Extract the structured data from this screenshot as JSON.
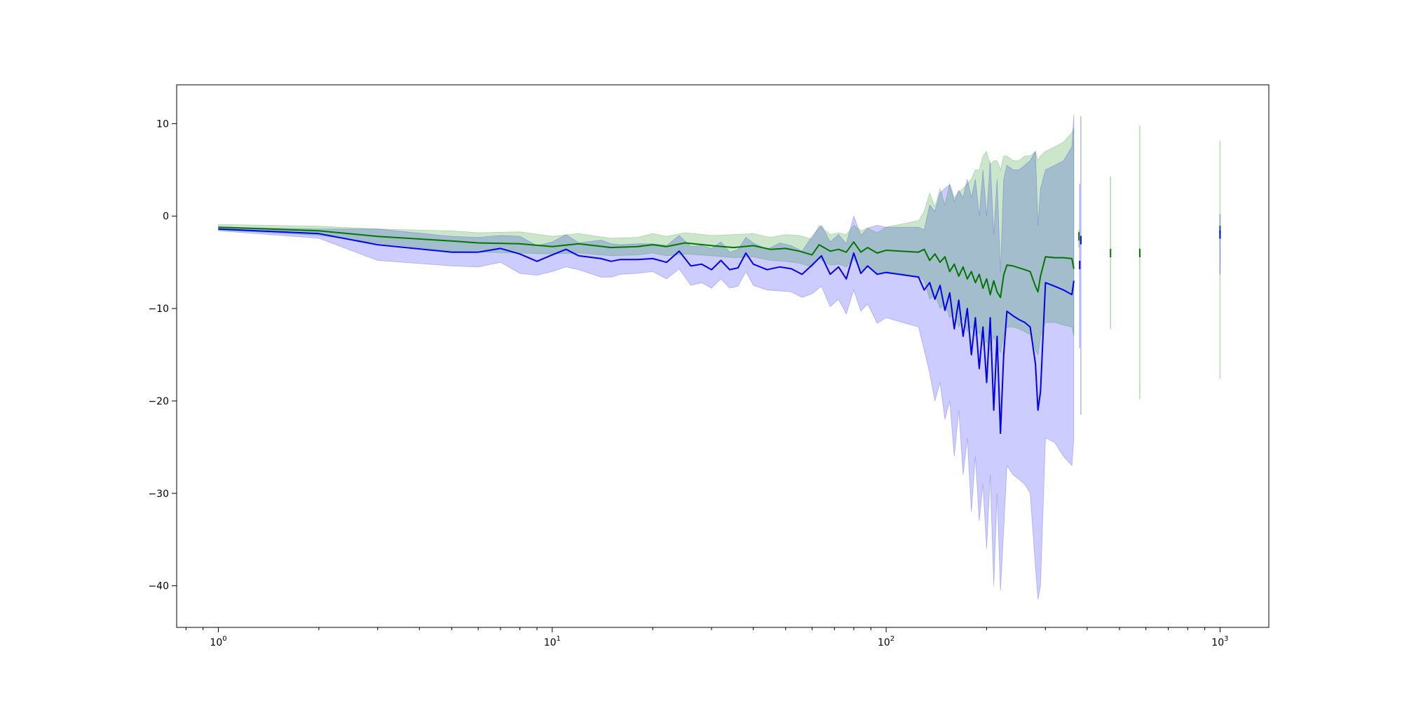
{
  "chart_data": {
    "type": "line",
    "title": "",
    "xlabel": "",
    "ylabel": "",
    "xscale": "log",
    "xlim": [
      0.75,
      1400
    ],
    "ylim": [
      -44.5,
      14.2
    ],
    "grid": false,
    "legend": "none",
    "x_major_ticks": [
      {
        "value": 1,
        "base": "10",
        "exp": "0"
      },
      {
        "value": 10,
        "base": "10",
        "exp": "1"
      },
      {
        "value": 100,
        "base": "10",
        "exp": "2"
      },
      {
        "value": 1000,
        "base": "10",
        "exp": "3"
      }
    ],
    "y_ticks": [
      {
        "value": 10,
        "label": "10"
      },
      {
        "value": 0,
        "label": "0"
      },
      {
        "value": -10,
        "label": "−10"
      },
      {
        "value": -20,
        "label": "−20"
      },
      {
        "value": -30,
        "label": "−30"
      },
      {
        "value": -40,
        "label": "−40"
      }
    ],
    "series": [
      {
        "color": "#0000ee",
        "band_color": "#0000ff",
        "band_opacity": 0.2,
        "points": [
          [
            1,
            -1.4,
            -1.6,
            -1.2
          ],
          [
            2,
            -1.9,
            -2.4,
            -1.4
          ],
          [
            3,
            -3.1,
            -4.8,
            -1.4
          ],
          [
            5,
            -3.9,
            -5.4,
            -2.2
          ],
          [
            6,
            -3.9,
            -5.5,
            -2.3
          ],
          [
            7,
            -3.5,
            -5.0,
            -2.1
          ],
          [
            8,
            -4.1,
            -6.2,
            -2.2
          ],
          [
            9,
            -4.9,
            -6.4,
            -3.2
          ],
          [
            10,
            -4.2,
            -6.0,
            -2.8
          ],
          [
            11,
            -3.6,
            -5.5,
            -2.0
          ],
          [
            12,
            -4.3,
            -5.8,
            -2.9
          ],
          [
            14,
            -4.6,
            -6.6,
            -2.6
          ],
          [
            15,
            -4.9,
            -6.6,
            -3.0
          ],
          [
            16,
            -4.7,
            -6.3,
            -3.1
          ],
          [
            18,
            -4.7,
            -6.2,
            -3.0
          ],
          [
            20,
            -4.6,
            -6.0,
            -3.0
          ],
          [
            22,
            -5.0,
            -6.8,
            -3.2
          ],
          [
            24,
            -3.8,
            -5.7,
            -2.1
          ],
          [
            26,
            -5.4,
            -7.5,
            -3.3
          ],
          [
            28,
            -5.2,
            -7.2,
            -3.2
          ],
          [
            30,
            -5.8,
            -7.8,
            -3.5
          ],
          [
            32,
            -4.8,
            -6.8,
            -2.8
          ],
          [
            34,
            -5.8,
            -7.8,
            -3.9
          ],
          [
            36,
            -5.6,
            -7.6,
            -3.6
          ],
          [
            38,
            -4.0,
            -6.0,
            -2.3
          ],
          [
            40,
            -5.2,
            -7.5,
            -2.9
          ],
          [
            44,
            -5.8,
            -8.0,
            -3.6
          ],
          [
            48,
            -5.5,
            -8.1,
            -2.9
          ],
          [
            52,
            -5.7,
            -8.2,
            -3.2
          ],
          [
            56,
            -6.3,
            -8.8,
            -3.8
          ],
          [
            60,
            -5.3,
            -8.4,
            -2.2
          ],
          [
            64,
            -4.3,
            -7.6,
            -1.0
          ],
          [
            68,
            -6.3,
            -9.8,
            -2.8
          ],
          [
            72,
            -5.5,
            -9.0,
            -2.0
          ],
          [
            76,
            -6.8,
            -10.6,
            -3.0
          ],
          [
            80,
            -4.0,
            -8.0,
            0.0
          ],
          [
            84,
            -6.2,
            -10.3,
            -2.1
          ],
          [
            88,
            -5.4,
            -9.5,
            -1.3
          ],
          [
            94,
            -6.3,
            -11.6,
            -1.0
          ],
          [
            100,
            -6.1,
            -11.0,
            -1.2
          ],
          [
            125,
            -6.6,
            -12.0,
            -1.2
          ],
          [
            130,
            -8.0,
            -14.5,
            -1.5
          ],
          [
            135,
            -7.2,
            -17.0,
            1.2
          ],
          [
            140,
            -9.0,
            -20.0,
            0.5
          ],
          [
            145,
            -7.5,
            -18.0,
            2.5
          ],
          [
            150,
            -10.2,
            -22.0,
            3.0
          ],
          [
            155,
            -8.3,
            -20.0,
            3.4
          ],
          [
            160,
            -12.2,
            -26.0,
            1.6
          ],
          [
            165,
            -9.1,
            -21.0,
            2.8
          ],
          [
            170,
            -13.0,
            -28.0,
            2.0
          ],
          [
            175,
            -10.0,
            -24.0,
            4.0
          ],
          [
            180,
            -15.0,
            -32.0,
            2.0
          ],
          [
            185,
            -11.0,
            -26.0,
            4.0
          ],
          [
            190,
            -16.5,
            -33.0,
            0.0
          ],
          [
            195,
            -12.0,
            -29.0,
            5.0
          ],
          [
            200,
            -18.0,
            -36.0,
            0.0
          ],
          [
            205,
            -11.0,
            -28.0,
            6.0
          ],
          [
            210,
            -21.0,
            -40.0,
            -2.0
          ],
          [
            215,
            -13.0,
            -30.0,
            4.0
          ],
          [
            220,
            -23.5,
            -40.5,
            -6.0
          ],
          [
            225,
            -15.0,
            -34.0,
            4.0
          ],
          [
            230,
            -10.3,
            -27.0,
            5.5
          ],
          [
            240,
            -10.8,
            -28.0,
            5.0
          ],
          [
            250,
            -11.2,
            -28.5,
            5.0
          ],
          [
            260,
            -11.5,
            -29.0,
            5.5
          ],
          [
            270,
            -12.0,
            -30.0,
            6.0
          ],
          [
            280,
            -16.0,
            -38.0,
            7.0
          ],
          [
            285,
            -21.0,
            -41.5,
            -1.0
          ],
          [
            290,
            -19.0,
            -40.0,
            3.0
          ],
          [
            300,
            -7.2,
            -24.0,
            5.0
          ],
          [
            320,
            -7.6,
            -24.5,
            5.5
          ],
          [
            340,
            -8.0,
            -26.0,
            6.0
          ],
          [
            360,
            -8.5,
            -27.0,
            7.5
          ],
          [
            365,
            -7.0,
            -24.0,
            11.0
          ]
        ]
      },
      {
        "color": "#007700",
        "band_color": "#008000",
        "band_opacity": 0.2,
        "points": [
          [
            1,
            -1.2,
            -1.5,
            -0.9
          ],
          [
            2,
            -1.6,
            -2.1,
            -1.1
          ],
          [
            3,
            -2.2,
            -2.9,
            -1.4
          ],
          [
            5,
            -2.7,
            -3.8,
            -1.6
          ],
          [
            6,
            -2.9,
            -3.9,
            -1.8
          ],
          [
            8,
            -3.0,
            -4.0,
            -1.7
          ],
          [
            10,
            -3.3,
            -4.1,
            -2.2
          ],
          [
            12,
            -3.0,
            -4.0,
            -1.9
          ],
          [
            15,
            -3.4,
            -4.3,
            -2.4
          ],
          [
            18,
            -3.3,
            -4.2,
            -2.3
          ],
          [
            20,
            -3.1,
            -4.0,
            -1.9
          ],
          [
            22,
            -3.3,
            -4.3,
            -2.2
          ],
          [
            25,
            -2.9,
            -4.1,
            -1.8
          ],
          [
            30,
            -3.2,
            -4.3,
            -2.1
          ],
          [
            35,
            -3.4,
            -4.5,
            -2.0
          ],
          [
            40,
            -3.2,
            -4.4,
            -1.9
          ],
          [
            45,
            -3.6,
            -4.8,
            -2.3
          ],
          [
            50,
            -3.5,
            -4.9,
            -2.0
          ],
          [
            55,
            -3.8,
            -5.1,
            -2.1
          ],
          [
            60,
            -4.2,
            -5.5,
            -2.5
          ],
          [
            63,
            -3.1,
            -4.6,
            -1.0
          ],
          [
            68,
            -3.8,
            -5.3,
            -2.0
          ],
          [
            72,
            -3.6,
            -5.2,
            -1.8
          ],
          [
            76,
            -3.9,
            -5.5,
            -2.0
          ],
          [
            80,
            -2.8,
            -4.6,
            -1.0
          ],
          [
            84,
            -3.9,
            -5.9,
            -1.6
          ],
          [
            88,
            -3.4,
            -5.5,
            -1.3
          ],
          [
            94,
            -4.0,
            -6.2,
            -1.8
          ],
          [
            100,
            -3.7,
            -6.0,
            -1.2
          ],
          [
            125,
            -3.9,
            -6.5,
            -0.5
          ],
          [
            130,
            -3.6,
            -7.0,
            0.5
          ],
          [
            135,
            -4.8,
            -9.0,
            2.5
          ],
          [
            140,
            -4.1,
            -8.5,
            1.0
          ],
          [
            145,
            -5.0,
            -10.0,
            3.0
          ],
          [
            150,
            -4.4,
            -9.5,
            1.2
          ],
          [
            155,
            -6.0,
            -11.0,
            3.5
          ],
          [
            160,
            -5.2,
            -10.5,
            2.0
          ],
          [
            165,
            -6.5,
            -12.0,
            2.6
          ],
          [
            170,
            -5.5,
            -11.0,
            3.0
          ],
          [
            175,
            -6.8,
            -12.5,
            3.5
          ],
          [
            180,
            -6.0,
            -12.0,
            4.0
          ],
          [
            185,
            -7.2,
            -13.0,
            5.0
          ],
          [
            190,
            -6.3,
            -12.5,
            5.0
          ],
          [
            195,
            -7.8,
            -14.0,
            6.5
          ],
          [
            200,
            -6.8,
            -13.5,
            7.0
          ],
          [
            205,
            -8.5,
            -14.5,
            5.5
          ],
          [
            210,
            -7.0,
            -13.0,
            6.0
          ],
          [
            215,
            -8.2,
            -14.0,
            6.0
          ],
          [
            220,
            -8.8,
            -14.8,
            5.0
          ],
          [
            225,
            -6.4,
            -13.0,
            6.5
          ],
          [
            230,
            -5.3,
            -12.0,
            6.5
          ],
          [
            240,
            -5.4,
            -12.0,
            6.0
          ],
          [
            250,
            -5.6,
            -12.2,
            6.0
          ],
          [
            260,
            -5.8,
            -12.5,
            6.5
          ],
          [
            270,
            -6.0,
            -12.8,
            6.5
          ],
          [
            280,
            -7.6,
            -14.5,
            7.0
          ],
          [
            285,
            -8.2,
            -15.0,
            6.0
          ],
          [
            290,
            -6.5,
            -13.0,
            6.5
          ],
          [
            300,
            -4.4,
            -11.5,
            7.0
          ],
          [
            320,
            -4.5,
            -11.5,
            7.5
          ],
          [
            340,
            -4.5,
            -11.8,
            8.0
          ],
          [
            360,
            -4.6,
            -12.0,
            9.0
          ],
          [
            365,
            -5.7,
            -13.0,
            9.5
          ]
        ]
      }
    ],
    "sparse_points": [
      {
        "x": 380,
        "mean": -5.3,
        "low": -14.3,
        "high": 3.5,
        "color": "#0000ee",
        "band_color": "#0000ff"
      },
      {
        "x": 383,
        "mean": -2.6,
        "low": -21.5,
        "high": 10.8,
        "color": "#0000ee",
        "band_color": "#0000ff"
      },
      {
        "x": 378,
        "mean": -2.2,
        "low": -3.4,
        "high": -1.5,
        "color": "#007700",
        "band_color": "#008000"
      },
      {
        "x": 470,
        "mean": -4.0,
        "low": -12.2,
        "high": 4.3,
        "color": "#007700",
        "band_color": "#008000"
      },
      {
        "x": 575,
        "mean": -4.0,
        "low": -19.8,
        "high": 9.8,
        "color": "#007700",
        "band_color": "#008000"
      },
      {
        "x": 1000,
        "mean": -1.5,
        "low": -17.6,
        "high": 8.1,
        "color": "#007700",
        "band_color": "#008000"
      },
      {
        "x": 1000,
        "mean": -2.0,
        "low": -6.3,
        "high": 0.2,
        "color": "#0000ee",
        "band_color": "#0000ff"
      }
    ]
  }
}
